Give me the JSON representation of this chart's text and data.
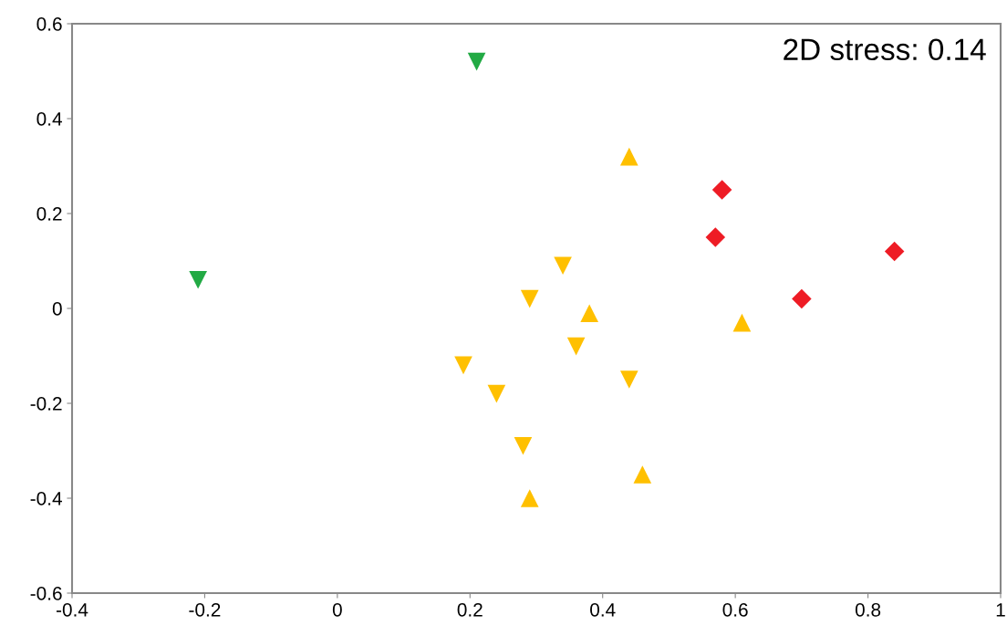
{
  "chart_data": {
    "type": "scatter",
    "series": [
      {
        "color": "#22aa44",
        "marker": "triangle_down",
        "x": [
          0.21,
          -0.21
        ],
        "values": [
          0.52,
          0.06
        ]
      },
      {
        "color": "#ffc000",
        "marker": "triangle_down",
        "x": [
          0.34,
          0.29,
          0.36,
          0.19,
          0.24,
          0.44,
          0.28
        ],
        "values": [
          0.09,
          0.02,
          -0.08,
          -0.12,
          -0.18,
          -0.15,
          -0.29
        ]
      },
      {
        "color": "#ffc000",
        "marker": "triangle",
        "x": [
          0.44,
          0.38,
          0.61,
          0.46,
          0.29
        ],
        "values": [
          0.32,
          -0.01,
          -0.03,
          -0.35,
          -0.4
        ]
      },
      {
        "color": "#ee1c25",
        "marker": "diamond",
        "x": [
          0.58,
          0.57,
          0.84,
          0.7
        ],
        "values": [
          0.25,
          0.15,
          0.12,
          0.02
        ]
      }
    ],
    "xlim": [
      -0.4,
      1
    ],
    "xticks": [
      -0.4,
      -0.2,
      0,
      0.2,
      0.4,
      0.6,
      0.8,
      1
    ],
    "ylim": [
      -0.6,
      0.6
    ],
    "yticks": [
      -0.6,
      -0.4,
      -0.2,
      0,
      0.2,
      0.4,
      0.6
    ],
    "annotations": [
      "2D stress: 0.14"
    ],
    "grid": false,
    "legend": false
  }
}
